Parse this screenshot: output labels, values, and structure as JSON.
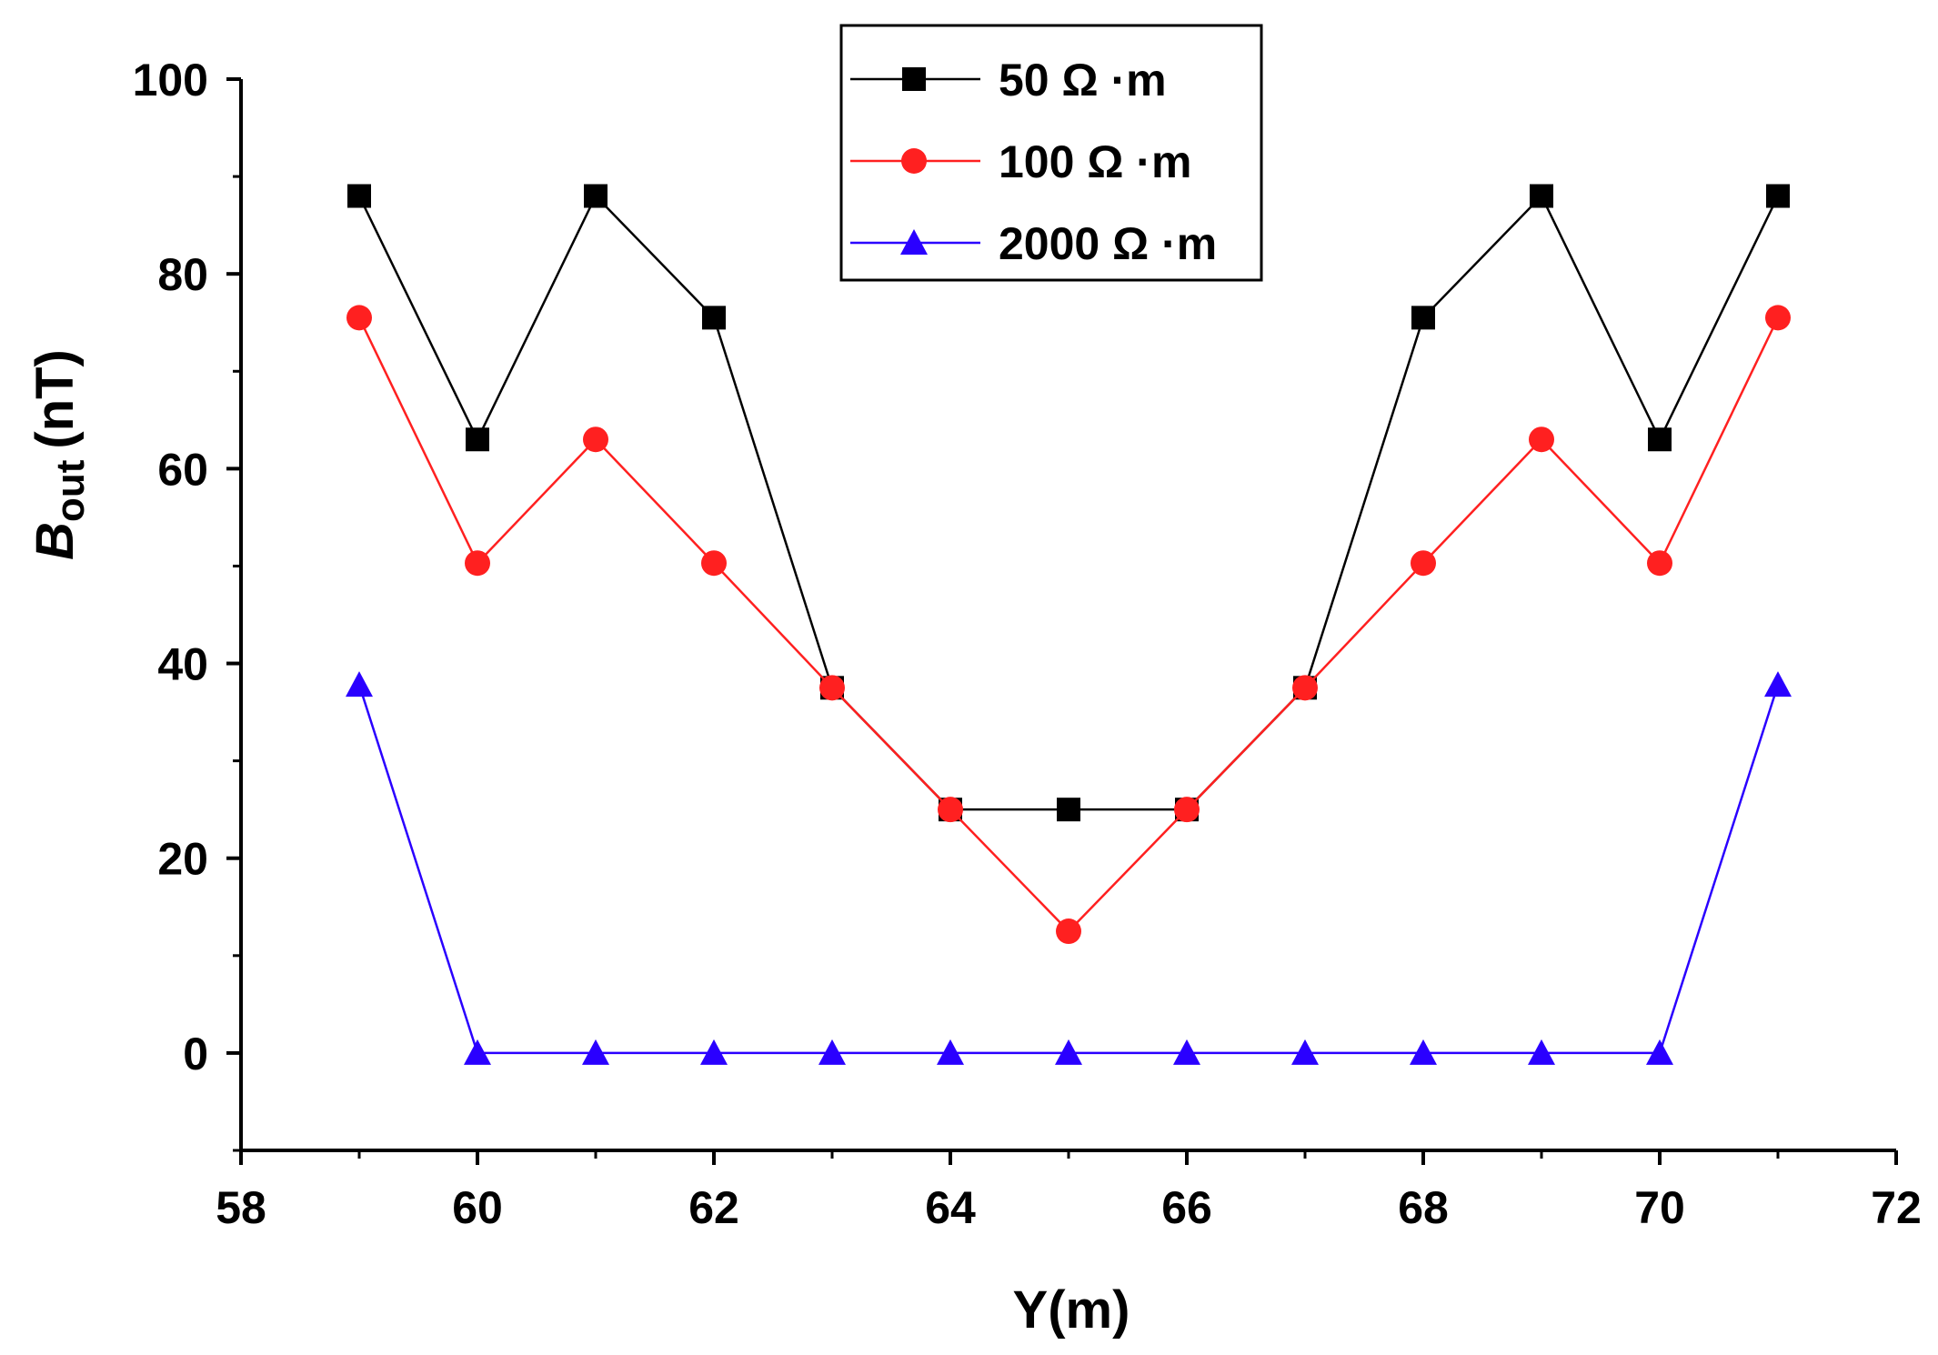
{
  "chart_data": {
    "type": "line",
    "xlabel": "Y(m)",
    "ylabel_main": "B",
    "ylabel_sub": "out",
    "ylabel_unit": "(nT)",
    "xlim": [
      58,
      72
    ],
    "ylim": [
      -10,
      100
    ],
    "x_ticks": [
      58,
      60,
      62,
      64,
      66,
      68,
      70,
      72
    ],
    "y_ticks": [
      0,
      20,
      40,
      60,
      80,
      100
    ],
    "x_tick_labels": [
      "58",
      "60",
      "62",
      "64",
      "66",
      "68",
      "70",
      "72"
    ],
    "y_tick_labels": [
      "0",
      "20",
      "40",
      "60",
      "80",
      "100"
    ],
    "grid": false,
    "legend_position": "top-center",
    "x": [
      59,
      60,
      61,
      62,
      63,
      64,
      65,
      66,
      67,
      68,
      69,
      70,
      71
    ],
    "series": [
      {
        "name": "50 Ω ·m",
        "color": "#000000",
        "marker": "square",
        "values": [
          88,
          63,
          88,
          75.5,
          37.5,
          25,
          25,
          25,
          37.5,
          75.5,
          88,
          63,
          88
        ]
      },
      {
        "name": "100 Ω ·m",
        "color": "#ff2020",
        "marker": "circle",
        "values": [
          75.5,
          50.3,
          63,
          50.3,
          37.5,
          25,
          12.5,
          25,
          37.5,
          50.3,
          63,
          50.3,
          75.5
        ]
      },
      {
        "name": "2000 Ω ·m",
        "color": "#2a00ff",
        "marker": "triangle",
        "values": [
          37.8,
          0,
          0,
          0,
          0,
          0,
          0,
          0,
          0,
          0,
          0,
          0,
          37.8
        ]
      }
    ]
  }
}
